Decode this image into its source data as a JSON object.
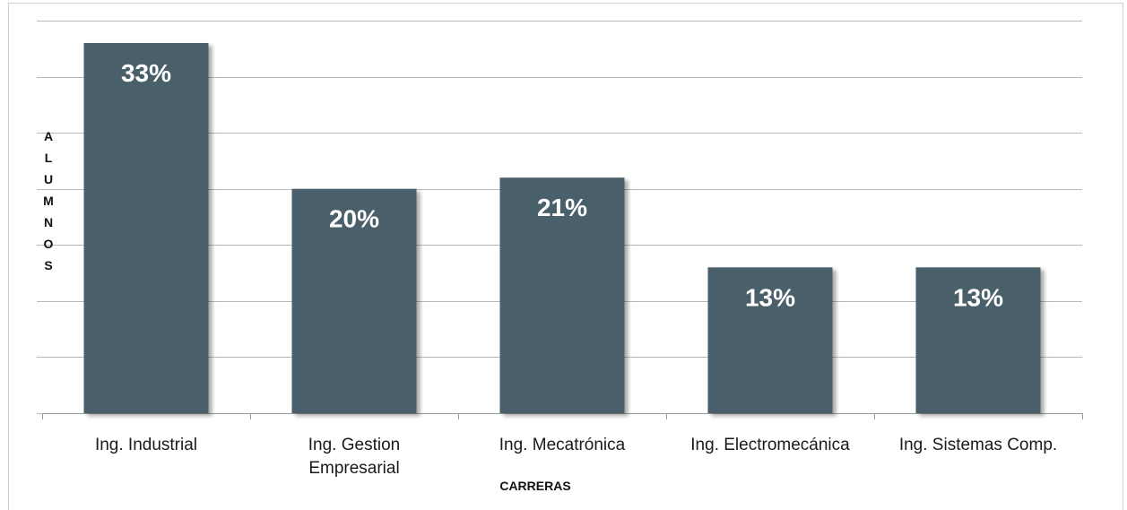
{
  "chart_data": {
    "type": "bar",
    "title": "",
    "categories": [
      "Ing. Industrial",
      "Ing. Gestion Empresarial",
      "Ing. Mecatrónica",
      "Ing. Electromecánica",
      "Ing. Sistemas Comp."
    ],
    "category_lines": [
      [
        "Ing. Industrial"
      ],
      [
        "Ing. Gestion",
        "Empresarial"
      ],
      [
        "Ing. Mecatrónica"
      ],
      [
        "Ing. Electromecánica"
      ],
      [
        "Ing. Sistemas Comp."
      ]
    ],
    "values": [
      33,
      20,
      21,
      13,
      13
    ],
    "data_labels": [
      "33%",
      "20%",
      "21%",
      "13%",
      "13%"
    ],
    "xlabel": "CARRERAS",
    "ylabel": "ALUMNOS",
    "ylim": [
      0,
      35
    ],
    "y_gridlines": 7,
    "grid": true,
    "legend": "none",
    "bar_color": "#4a5f69",
    "grid_color": "#b8b8b8"
  }
}
